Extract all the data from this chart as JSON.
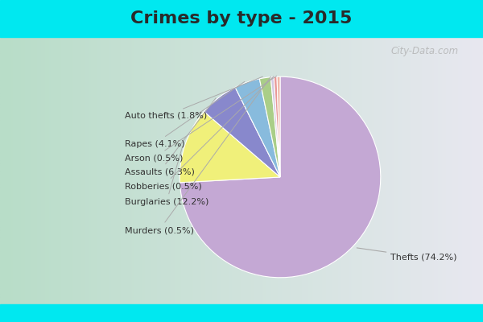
{
  "title": "Crimes by type - 2015",
  "labels": [
    "Thefts",
    "Burglaries",
    "Assaults",
    "Rapes",
    "Auto thefts",
    "Murders",
    "Robberies",
    "Arson"
  ],
  "values": [
    74.2,
    12.2,
    6.3,
    4.1,
    1.8,
    0.5,
    0.5,
    0.5
  ],
  "colors": [
    "#c4a8d4",
    "#f0f07a",
    "#8888cc",
    "#88bbdd",
    "#aace88",
    "#d4c8e0",
    "#e89898",
    "#f0b8a8"
  ],
  "title_fontsize": 16,
  "label_fontsize": 8,
  "startangle": 90,
  "counterclock": false,
  "figsize": [
    6.0,
    4.0
  ],
  "dpi": 100,
  "cyan_color": "#00e8f0",
  "bg_left": "#b8ddc8",
  "bg_right": "#e8e8f0",
  "label_color": "#333333",
  "watermark": "City-Data.com"
}
